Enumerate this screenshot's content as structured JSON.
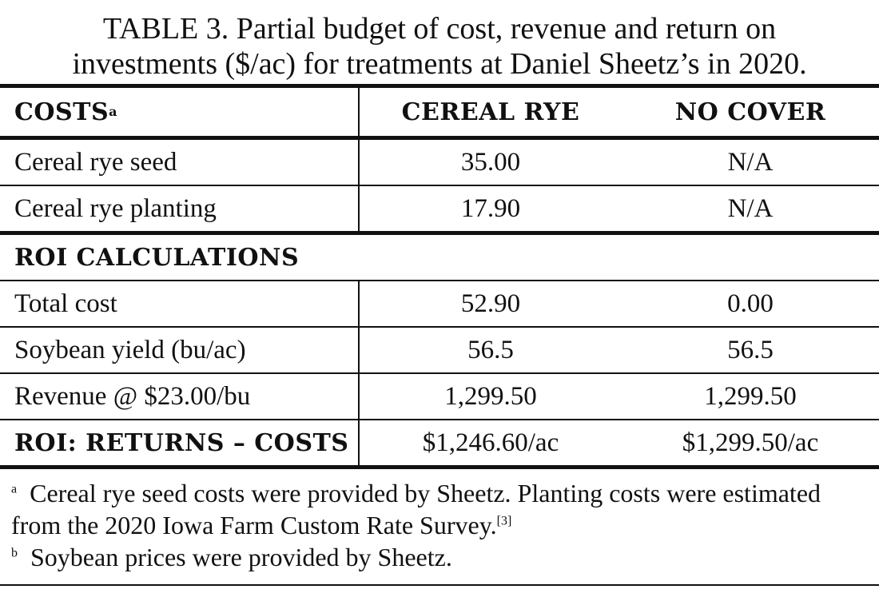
{
  "title": [
    "TABLE 3. Partial budget of cost, revenue and return on",
    "investments ($/ac) for treatments at Daniel Sheetz’s in 2020."
  ],
  "table": {
    "header": [
      {
        "text": "COSTS",
        "note": "a"
      },
      "CEREAL RYE",
      "NO COVER"
    ],
    "costs_rows": [
      [
        "Cereal rye seed",
        "35.00",
        "N/A"
      ],
      [
        "Cereal rye planting",
        "17.90",
        "N/A"
      ]
    ],
    "section": "ROI CALCULATIONS",
    "roi_rows": [
      [
        "Total cost",
        "52.90",
        "0.00"
      ],
      [
        "Soybean yield (bu/ac)",
        "56.5",
        "56.5"
      ],
      [
        "Revenue @ $23.00/bu",
        "1,299.50",
        "1,299.50"
      ]
    ],
    "total_row": [
      "ROI: RETURNS – COSTS",
      "$1,246.60/ac",
      "$1,299.50/ac"
    ]
  },
  "footnotes": [
    {
      "marker": "a",
      "text": "Cereal rye seed costs were provided by Sheetz. Planting costs were estimated from the 2020 Iowa Farm Custom Rate Survey.",
      "ref": "[3]"
    },
    {
      "marker": "b",
      "text": "Soybean prices were provided by Sheetz."
    }
  ]
}
